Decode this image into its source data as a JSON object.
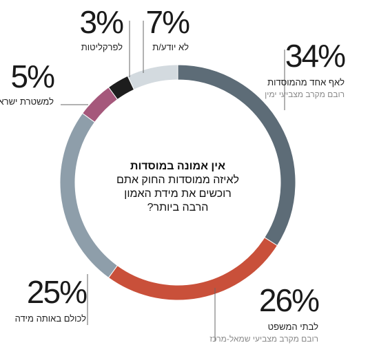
{
  "chart_data": {
    "type": "donut",
    "title": "אין אמונה במוסדות",
    "question_lines": [
      "לאיזה ממוסדות החוק אתם",
      "רוכשים את מידת האמון",
      "הרבה ביותר?"
    ],
    "categories": [
      "לאף אחד מהמוסדות",
      "לבתי המשפט",
      "לכולם באותה מידה",
      "למשטרת ישראל",
      "לפרקליטות",
      "לא יודע/ת"
    ],
    "values": [
      34,
      26,
      25,
      5,
      3,
      7
    ],
    "value_labels": [
      "34%",
      "26%",
      "25%",
      "5%",
      "3%",
      "7%"
    ],
    "notes": [
      "רובם מקרב מצביעי ימין",
      "רובם מקרב מצביעי שמאל-מרכז",
      null,
      null,
      null,
      null
    ],
    "colors": [
      "#5d6c77",
      "#c9503a",
      "#8e9eaa",
      "#a5587b",
      "#1d1d1d",
      "#d3dadf"
    ]
  }
}
